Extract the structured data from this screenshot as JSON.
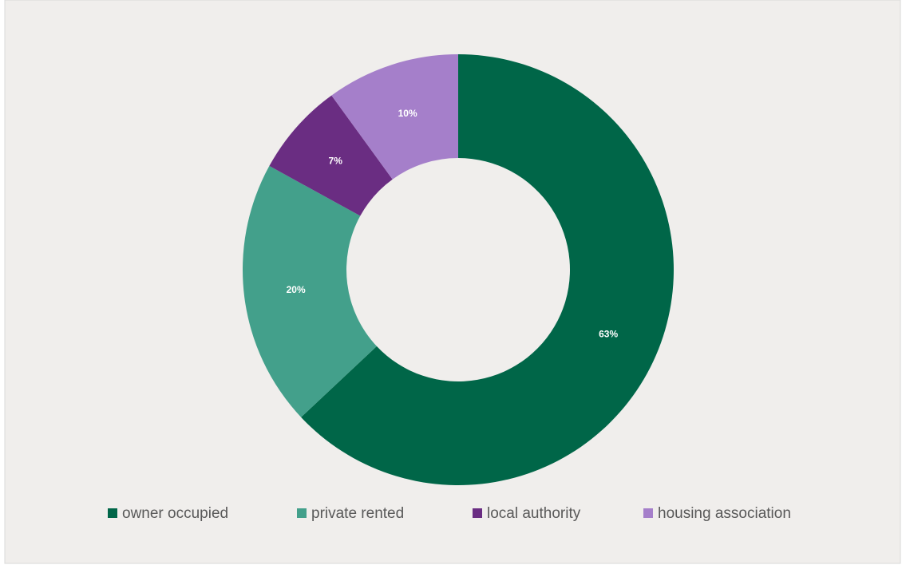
{
  "chart_data": {
    "type": "donut",
    "categories": [
      "owner occupied",
      "private rented",
      "local authority",
      "housing association"
    ],
    "values": [
      63,
      20,
      7,
      10
    ],
    "value_labels": [
      "63%",
      "20%",
      "7%",
      "10%"
    ],
    "colors": [
      "#006648",
      "#43a08b",
      "#6a2d82",
      "#a57fca"
    ],
    "legend": "bottom"
  }
}
